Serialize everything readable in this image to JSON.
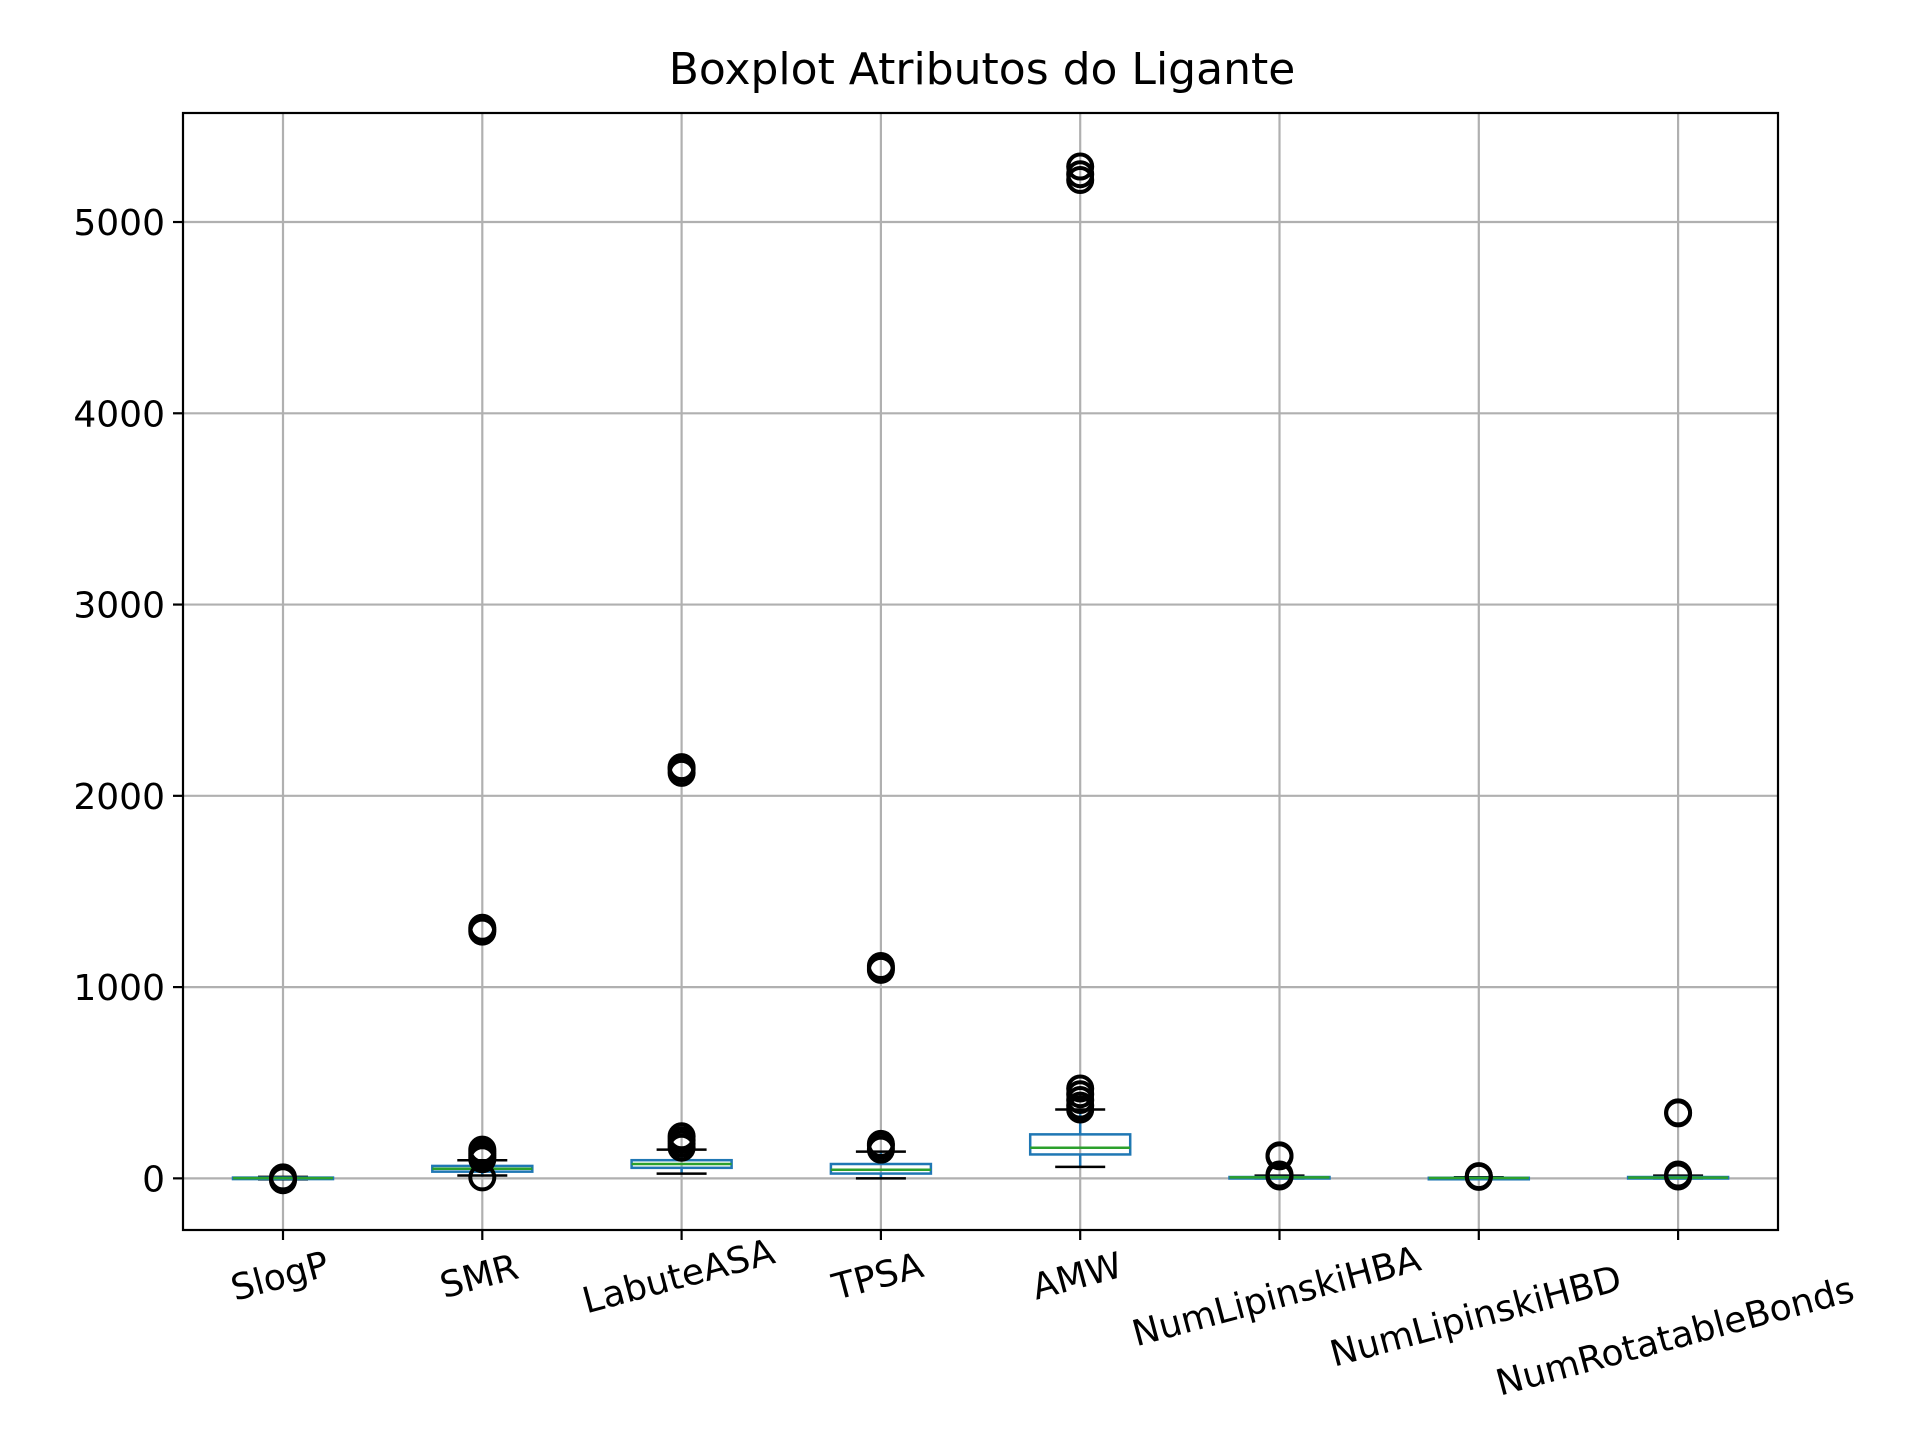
{
  "chart_data": {
    "type": "boxplot",
    "title": "Boxplot Atributos do Ligante",
    "xlabel": "",
    "ylabel": "",
    "ylim": [
      -270,
      5570
    ],
    "yticks": [
      0,
      1000,
      2000,
      3000,
      4000,
      5000
    ],
    "grid": true,
    "categories": [
      "SlogP",
      "SMR",
      "LabuteASA",
      "TPSA",
      "AMW",
      "NumLipinskiHBA",
      "NumLipinskiHBD",
      "NumRotatableBonds"
    ],
    "boxes": [
      {
        "name": "SlogP",
        "whislo": -5,
        "q1": -1,
        "med": 1,
        "q3": 4,
        "whishi": 8,
        "fliers": [
          -10,
          -5,
          5
        ]
      },
      {
        "name": "SMR",
        "whislo": 15,
        "q1": 35,
        "med": 50,
        "q3": 65,
        "whishi": 95,
        "fliers": [
          1290,
          1300,
          1310,
          150,
          140,
          130,
          120,
          110,
          100,
          5
        ]
      },
      {
        "name": "LabuteASA",
        "whislo": 25,
        "q1": 55,
        "med": 75,
        "q3": 95,
        "whishi": 150,
        "fliers": [
          2120,
          2140,
          2150,
          220,
          200,
          180,
          160
        ]
      },
      {
        "name": "TPSA",
        "whislo": 0,
        "q1": 25,
        "med": 45,
        "q3": 75,
        "whishi": 140,
        "fliers": [
          1090,
          1100,
          1110,
          180,
          170,
          150
        ]
      },
      {
        "name": "AMW",
        "whislo": 60,
        "q1": 125,
        "med": 160,
        "q3": 230,
        "whishi": 360,
        "fliers": [
          5220,
          5250,
          5290,
          470,
          440,
          410,
          380,
          360
        ]
      },
      {
        "name": "NumLipinskiHBA",
        "whislo": 0,
        "q1": 3,
        "med": 5,
        "q3": 7,
        "whishi": 14,
        "fliers": [
          115,
          120,
          10,
          15,
          20
        ]
      },
      {
        "name": "NumLipinskiHBD",
        "whislo": 0,
        "q1": 1,
        "med": 2,
        "q3": 3,
        "whishi": 6,
        "fliers": [
          8,
          10,
          12
        ]
      },
      {
        "name": "NumRotatableBonds",
        "whislo": 0,
        "q1": 2,
        "med": 4,
        "q3": 7,
        "whishi": 14,
        "fliers": [
          340,
          345,
          10,
          15,
          20
        ]
      }
    ],
    "colors": {
      "box": "#1f77b4",
      "median": "#2ca02c",
      "cap": "#000000",
      "flier": "#000000",
      "grid": "#b0b0b0"
    }
  }
}
